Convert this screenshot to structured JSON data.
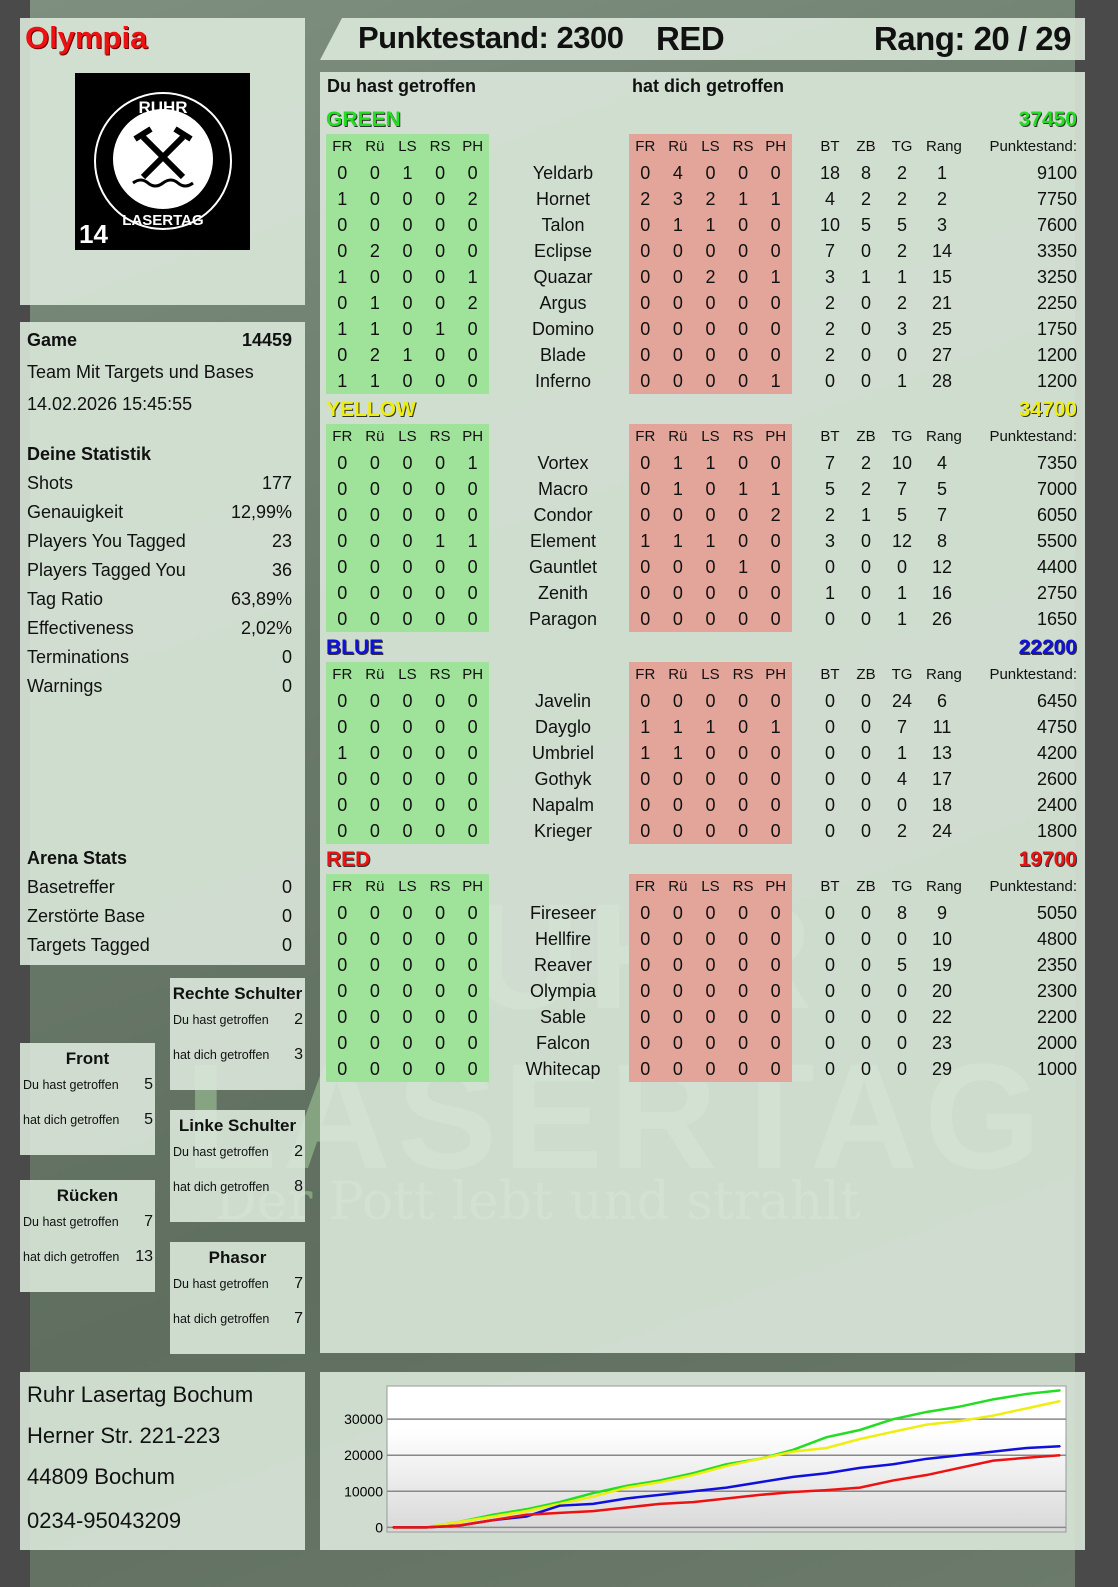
{
  "player": {
    "name": "Olympia",
    "score_label": "Punktestand: 2300",
    "team": "RED",
    "rank_label": "Rang: 20 / 29"
  },
  "logo": {
    "text_top": "RUHR",
    "text_bottom": "LASERTAG",
    "number": "14"
  },
  "game": {
    "label": "Game",
    "id": "14459",
    "mode": "Team Mit Targets und Bases",
    "datetime": "14.02.2026 15:45:55"
  },
  "stats": {
    "title": "Deine Statistik",
    "rows": [
      {
        "label": "Shots",
        "value": "177"
      },
      {
        "label": "Genauigkeit",
        "value": "12,99%"
      },
      {
        "label": "Players You Tagged",
        "value": "23"
      },
      {
        "label": "Players Tagged You",
        "value": "36"
      },
      {
        "label": "Tag Ratio",
        "value": "63,89%"
      },
      {
        "label": "Effectiveness",
        "value": "2,02%"
      },
      {
        "label": "Terminations",
        "value": "0"
      },
      {
        "label": "Warnings",
        "value": "0"
      }
    ]
  },
  "arena": {
    "title": "Arena Stats",
    "rows": [
      {
        "label": "Basetreffer",
        "value": "0"
      },
      {
        "label": "Zerstörte Base",
        "value": "0"
      },
      {
        "label": "Targets Tagged",
        "value": "0"
      }
    ]
  },
  "zones": [
    {
      "title": "Rechte Schulter",
      "hit_label": "Du hast getroffen",
      "hit": "2",
      "got_label": "hat dich getroffen",
      "got": "3"
    },
    {
      "title": "Front",
      "hit_label": "Du hast getroffen",
      "hit": "5",
      "got_label": "hat dich getroffen",
      "got": "5"
    },
    {
      "title": "Linke Schulter",
      "hit_label": "Du hast getroffen",
      "hit": "2",
      "got_label": "hat dich getroffen",
      "got": "8"
    },
    {
      "title": "Rücken",
      "hit_label": "Du hast getroffen",
      "hit": "7",
      "got_label": "hat dich getroffen",
      "got": "13"
    },
    {
      "title": "Phasor",
      "hit_label": "Du hast getroffen",
      "hit": "7",
      "got_label": "hat dich getroffen",
      "got": "7"
    }
  ],
  "address": [
    "Ruhr Lasertag Bochum",
    "Herner Str. 221-223",
    "44809 Bochum",
    "0234-95043209"
  ],
  "watermark": {
    "line1": "RUHR",
    "line2": "LASERTAG",
    "slogan": "Der Pott lebt und strahlt"
  },
  "table": {
    "you_hit_label": "Du hast getroffen",
    "hit_you_label": "hat dich getroffen",
    "hit_cols": [
      "FR",
      "Rü",
      "LS",
      "RS",
      "PH"
    ],
    "stat_cols": [
      "BT",
      "ZB",
      "TG",
      "Rang"
    ],
    "score_col": "Punktestand:",
    "teams": [
      {
        "name": "GREEN",
        "score": "37450",
        "color": "#22dd22",
        "players": [
          [
            "Yeldarb",
            [
              0,
              0,
              1,
              0,
              0
            ],
            [
              0,
              4,
              0,
              0,
              0
            ],
            [
              18,
              8,
              2,
              1
            ],
            9100
          ],
          [
            "Hornet",
            [
              1,
              0,
              0,
              0,
              2
            ],
            [
              2,
              3,
              2,
              1,
              1
            ],
            [
              4,
              2,
              2,
              2
            ],
            7750
          ],
          [
            "Talon",
            [
              0,
              0,
              0,
              0,
              0
            ],
            [
              0,
              1,
              1,
              0,
              0
            ],
            [
              10,
              5,
              5,
              3
            ],
            7600
          ],
          [
            "Eclipse",
            [
              0,
              2,
              0,
              0,
              0
            ],
            [
              0,
              0,
              0,
              0,
              0
            ],
            [
              7,
              0,
              2,
              14
            ],
            3350
          ],
          [
            "Quazar",
            [
              1,
              0,
              0,
              0,
              1
            ],
            [
              0,
              0,
              2,
              0,
              1
            ],
            [
              3,
              1,
              1,
              15
            ],
            3250
          ],
          [
            "Argus",
            [
              0,
              1,
              0,
              0,
              2
            ],
            [
              0,
              0,
              0,
              0,
              0
            ],
            [
              2,
              0,
              2,
              21
            ],
            2250
          ],
          [
            "Domino",
            [
              1,
              1,
              0,
              1,
              0
            ],
            [
              0,
              0,
              0,
              0,
              0
            ],
            [
              2,
              0,
              3,
              25
            ],
            1750
          ],
          [
            "Blade",
            [
              0,
              2,
              1,
              0,
              0
            ],
            [
              0,
              0,
              0,
              0,
              0
            ],
            [
              2,
              0,
              0,
              27
            ],
            1200
          ],
          [
            "Inferno",
            [
              1,
              1,
              0,
              0,
              0
            ],
            [
              0,
              0,
              0,
              0,
              1
            ],
            [
              0,
              0,
              1,
              28
            ],
            1200
          ]
        ]
      },
      {
        "name": "YELLOW",
        "score": "34700",
        "color": "#eeee10",
        "players": [
          [
            "Vortex",
            [
              0,
              0,
              0,
              0,
              1
            ],
            [
              0,
              1,
              1,
              0,
              0
            ],
            [
              7,
              2,
              10,
              4
            ],
            7350
          ],
          [
            "Macro",
            [
              0,
              0,
              0,
              0,
              0
            ],
            [
              0,
              1,
              0,
              1,
              1
            ],
            [
              5,
              2,
              7,
              5
            ],
            7000
          ],
          [
            "Condor",
            [
              0,
              0,
              0,
              0,
              0
            ],
            [
              0,
              0,
              0,
              0,
              2
            ],
            [
              2,
              1,
              5,
              7
            ],
            6050
          ],
          [
            "Element",
            [
              0,
              0,
              0,
              1,
              1
            ],
            [
              1,
              1,
              1,
              0,
              0
            ],
            [
              3,
              0,
              12,
              8
            ],
            5500
          ],
          [
            "Gauntlet",
            [
              0,
              0,
              0,
              0,
              0
            ],
            [
              0,
              0,
              0,
              1,
              0
            ],
            [
              0,
              0,
              0,
              12
            ],
            4400
          ],
          [
            "Zenith",
            [
              0,
              0,
              0,
              0,
              0
            ],
            [
              0,
              0,
              0,
              0,
              0
            ],
            [
              1,
              0,
              1,
              16
            ],
            2750
          ],
          [
            "Paragon",
            [
              0,
              0,
              0,
              0,
              0
            ],
            [
              0,
              0,
              0,
              0,
              0
            ],
            [
              0,
              0,
              1,
              26
            ],
            1650
          ]
        ]
      },
      {
        "name": "BLUE",
        "score": "22200",
        "color": "#1010dd",
        "players": [
          [
            "Javelin",
            [
              0,
              0,
              0,
              0,
              0
            ],
            [
              0,
              0,
              0,
              0,
              0
            ],
            [
              0,
              0,
              24,
              6
            ],
            6450
          ],
          [
            "Dayglo",
            [
              0,
              0,
              0,
              0,
              0
            ],
            [
              1,
              1,
              1,
              0,
              1
            ],
            [
              0,
              0,
              7,
              11
            ],
            4750
          ],
          [
            "Umbriel",
            [
              1,
              0,
              0,
              0,
              0
            ],
            [
              1,
              1,
              0,
              0,
              0
            ],
            [
              0,
              0,
              1,
              13
            ],
            4200
          ],
          [
            "Gothyk",
            [
              0,
              0,
              0,
              0,
              0
            ],
            [
              0,
              0,
              0,
              0,
              0
            ],
            [
              0,
              0,
              4,
              17
            ],
            2600
          ],
          [
            "Napalm",
            [
              0,
              0,
              0,
              0,
              0
            ],
            [
              0,
              0,
              0,
              0,
              0
            ],
            [
              0,
              0,
              0,
              18
            ],
            2400
          ],
          [
            "Krieger",
            [
              0,
              0,
              0,
              0,
              0
            ],
            [
              0,
              0,
              0,
              0,
              0
            ],
            [
              0,
              0,
              2,
              24
            ],
            1800
          ]
        ]
      },
      {
        "name": "RED",
        "score": "19700",
        "color": "#ee1111",
        "players": [
          [
            "Fireseer",
            [
              0,
              0,
              0,
              0,
              0
            ],
            [
              0,
              0,
              0,
              0,
              0
            ],
            [
              0,
              0,
              8,
              9
            ],
            5050
          ],
          [
            "Hellfire",
            [
              0,
              0,
              0,
              0,
              0
            ],
            [
              0,
              0,
              0,
              0,
              0
            ],
            [
              0,
              0,
              0,
              10
            ],
            4800
          ],
          [
            "Reaver",
            [
              0,
              0,
              0,
              0,
              0
            ],
            [
              0,
              0,
              0,
              0,
              0
            ],
            [
              0,
              0,
              5,
              19
            ],
            2350
          ],
          [
            "Olympia",
            [
              0,
              0,
              0,
              0,
              0
            ],
            [
              0,
              0,
              0,
              0,
              0
            ],
            [
              0,
              0,
              0,
              20
            ],
            2300
          ],
          [
            "Sable",
            [
              0,
              0,
              0,
              0,
              0
            ],
            [
              0,
              0,
              0,
              0,
              0
            ],
            [
              0,
              0,
              0,
              22
            ],
            2200
          ],
          [
            "Falcon",
            [
              0,
              0,
              0,
              0,
              0
            ],
            [
              0,
              0,
              0,
              0,
              0
            ],
            [
              0,
              0,
              0,
              23
            ],
            2000
          ],
          [
            "Whitecap",
            [
              0,
              0,
              0,
              0,
              0
            ],
            [
              0,
              0,
              0,
              0,
              0
            ],
            [
              0,
              0,
              0,
              29
            ],
            1000
          ]
        ]
      }
    ]
  },
  "chart_data": {
    "type": "line",
    "ylim": [
      -1300,
      39200
    ],
    "yticks": [
      0,
      10000,
      20000,
      30000
    ],
    "grid": true,
    "series": [
      {
        "color": "#22dd22",
        "values": [
          0,
          0,
          1500,
          3500,
          5000,
          7000,
          9500,
          11500,
          13000,
          15000,
          17500,
          19000,
          21500,
          25000,
          27000,
          30000,
          32000,
          33500,
          35500,
          37000,
          38000
        ]
      },
      {
        "color": "#eeee10",
        "values": [
          0,
          0,
          1500,
          3000,
          4500,
          6500,
          8500,
          11000,
          12500,
          14500,
          17000,
          19000,
          21000,
          22000,
          24500,
          26500,
          28500,
          29500,
          31000,
          33000,
          35000
        ]
      },
      {
        "color": "#1010dd",
        "values": [
          0,
          0,
          500,
          2000,
          3000,
          6000,
          6500,
          8000,
          9000,
          10000,
          11000,
          12500,
          14000,
          15000,
          16500,
          17500,
          19000,
          20000,
          21000,
          22000,
          22500
        ]
      },
      {
        "color": "#ee1111",
        "values": [
          0,
          0,
          500,
          2000,
          3500,
          4000,
          4500,
          5500,
          6500,
          7000,
          8000,
          9000,
          9800,
          10300,
          11000,
          13000,
          14500,
          16500,
          18500,
          19300,
          20000
        ]
      }
    ]
  }
}
